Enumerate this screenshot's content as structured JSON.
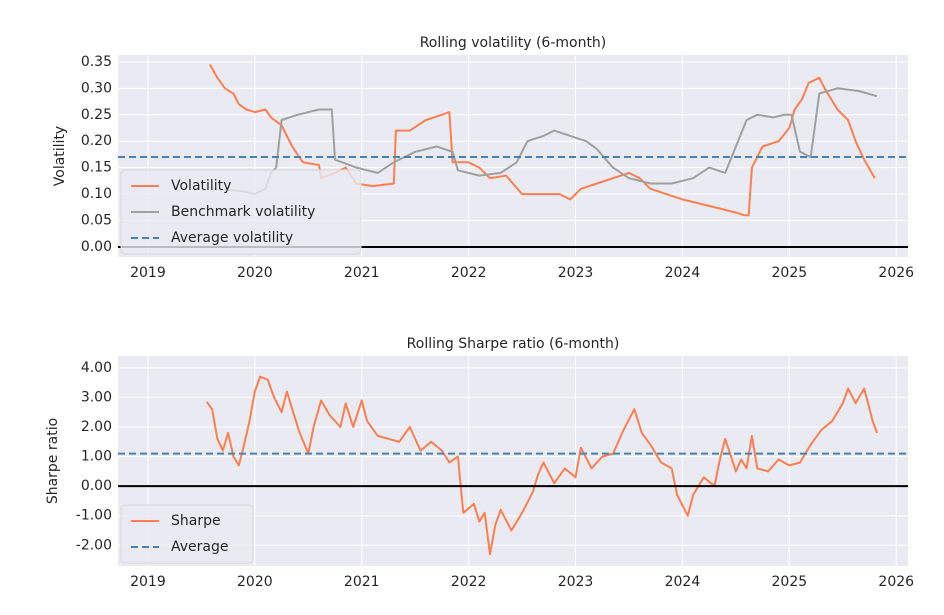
{
  "chart_data": [
    {
      "type": "line",
      "title": "Rolling volatility (6-month)",
      "ylabel": "Volatility",
      "xlim": [
        2018.72,
        2026.11
      ],
      "xticks": [
        2019,
        2020,
        2021,
        2022,
        2023,
        2024,
        2025,
        2026
      ],
      "ylim": [
        -0.019,
        0.363
      ],
      "yticks": [
        {
          "value": 0,
          "label": "0.00"
        },
        0.05,
        {
          "value": 0.1,
          "label": "0.10"
        },
        0.15,
        {
          "value": 0.2,
          "label": "0.20"
        },
        0.25,
        {
          "value": 0.3,
          "label": "0.30"
        },
        0.35
      ],
      "grid": true,
      "legend": "lower left",
      "axhline": 0,
      "series": [
        {
          "name": "Volatility",
          "color": "#ff7f50",
          "x": [
            2019.58,
            2019.65,
            2019.72,
            2019.8,
            2019.85,
            2019.92,
            2020.0,
            2020.1,
            2020.15,
            2020.25,
            2020.35,
            2020.45,
            2020.6,
            2020.62,
            2020.75,
            2020.85,
            2020.95,
            2021.1,
            2021.3,
            2021.32,
            2021.45,
            2021.6,
            2021.75,
            2021.82,
            2021.85,
            2022.0,
            2022.1,
            2022.2,
            2022.35,
            2022.5,
            2022.7,
            2022.85,
            2022.95,
            2023.05,
            2023.2,
            2023.35,
            2023.5,
            2023.6,
            2023.7,
            2023.85,
            2024.0,
            2024.2,
            2024.4,
            2024.5,
            2024.58,
            2024.62,
            2024.65,
            2024.75,
            2024.9,
            2025.0,
            2025.05,
            2025.12,
            2025.18,
            2025.28,
            2025.33,
            2025.45,
            2025.55,
            2025.62,
            2025.7,
            2025.8
          ],
          "values": [
            0.345,
            0.32,
            0.3,
            0.29,
            0.27,
            0.26,
            0.255,
            0.26,
            0.245,
            0.23,
            0.19,
            0.16,
            0.155,
            0.13,
            0.14,
            0.15,
            0.12,
            0.115,
            0.12,
            0.22,
            0.22,
            0.24,
            0.25,
            0.255,
            0.16,
            0.16,
            0.15,
            0.13,
            0.135,
            0.1,
            0.1,
            0.1,
            0.09,
            0.11,
            0.12,
            0.13,
            0.14,
            0.13,
            0.11,
            0.1,
            0.09,
            0.08,
            0.07,
            0.065,
            0.06,
            0.06,
            0.15,
            0.19,
            0.2,
            0.225,
            0.26,
            0.28,
            0.31,
            0.32,
            0.3,
            0.26,
            0.24,
            0.2,
            0.165,
            0.13
          ]
        },
        {
          "name": "Benchmark volatility",
          "color": "#a0a0a0",
          "x": [
            2019.6,
            2019.9,
            2020.0,
            2020.1,
            2020.15,
            2020.2,
            2020.25,
            2020.4,
            2020.6,
            2020.72,
            2020.75,
            2020.95,
            2021.15,
            2021.3,
            2021.5,
            2021.7,
            2021.85,
            2021.9,
            2022.1,
            2022.3,
            2022.45,
            2022.55,
            2022.7,
            2022.8,
            2022.95,
            2023.1,
            2023.2,
            2023.35,
            2023.5,
            2023.7,
            2023.9,
            2024.1,
            2024.25,
            2024.4,
            2024.5,
            2024.6,
            2024.7,
            2024.85,
            2024.95,
            2025.02,
            2025.1,
            2025.2,
            2025.28,
            2025.45,
            2025.65,
            2025.82
          ],
          "values": [
            0.11,
            0.105,
            0.1,
            0.11,
            0.14,
            0.15,
            0.24,
            0.25,
            0.26,
            0.26,
            0.165,
            0.15,
            0.14,
            0.16,
            0.18,
            0.19,
            0.18,
            0.145,
            0.135,
            0.14,
            0.16,
            0.2,
            0.21,
            0.22,
            0.21,
            0.2,
            0.185,
            0.15,
            0.13,
            0.12,
            0.12,
            0.13,
            0.15,
            0.14,
            0.19,
            0.24,
            0.25,
            0.245,
            0.25,
            0.25,
            0.18,
            0.17,
            0.29,
            0.3,
            0.295,
            0.285
          ]
        },
        {
          "name": "Average volatility",
          "color": "#4682b4",
          "linestyle": "dashed",
          "y": 0.17
        }
      ]
    },
    {
      "type": "line",
      "title": "Rolling Sharpe ratio (6-month)",
      "ylabel": "Sharpe ratio",
      "xlim": [
        2018.72,
        2026.11
      ],
      "xticks": [
        2019,
        2020,
        2021,
        2022,
        2023,
        2024,
        2025,
        2026
      ],
      "ylim": [
        -2.7,
        4.4
      ],
      "yticks": [
        {
          "value": -2,
          "label": "-2.00"
        },
        {
          "value": -1,
          "label": "-1.00"
        },
        {
          "value": 0,
          "label": "0.00"
        },
        {
          "value": 1,
          "label": "1.00"
        },
        {
          "value": 2,
          "label": "2.00"
        },
        {
          "value": 3,
          "label": "3.00"
        },
        {
          "value": 4,
          "label": "4.00"
        }
      ],
      "grid": true,
      "legend": "lower left",
      "axhline": 0,
      "series": [
        {
          "name": "Sharpe",
          "color": "#ff7f50",
          "x": [
            2019.55,
            2019.6,
            2019.65,
            2019.7,
            2019.75,
            2019.8,
            2019.85,
            2019.9,
            2019.95,
            2020.0,
            2020.05,
            2020.12,
            2020.18,
            2020.25,
            2020.3,
            2020.35,
            2020.42,
            2020.5,
            2020.55,
            2020.62,
            2020.7,
            2020.8,
            2020.85,
            2020.92,
            2021.0,
            2021.05,
            2021.15,
            2021.25,
            2021.35,
            2021.45,
            2021.55,
            2021.65,
            2021.75,
            2021.82,
            2021.9,
            2021.95,
            2022.05,
            2022.1,
            2022.15,
            2022.2,
            2022.25,
            2022.3,
            2022.4,
            2022.5,
            2022.6,
            2022.65,
            2022.7,
            2022.8,
            2022.9,
            2023.0,
            2023.05,
            2023.15,
            2023.25,
            2023.35,
            2023.45,
            2023.55,
            2023.62,
            2023.7,
            2023.8,
            2023.9,
            2023.95,
            2024.05,
            2024.1,
            2024.2,
            2024.3,
            2024.35,
            2024.4,
            2024.5,
            2024.55,
            2024.6,
            2024.65,
            2024.7,
            2024.8,
            2024.9,
            2025.0,
            2025.1,
            2025.2,
            2025.3,
            2025.4,
            2025.5,
            2025.55,
            2025.62,
            2025.7,
            2025.78,
            2025.82
          ],
          "values": [
            2.85,
            2.6,
            1.6,
            1.2,
            1.8,
            1.0,
            0.7,
            1.4,
            2.2,
            3.2,
            3.7,
            3.6,
            3.0,
            2.5,
            3.2,
            2.6,
            1.8,
            1.1,
            2.0,
            2.9,
            2.4,
            2.0,
            2.8,
            2.0,
            2.9,
            2.2,
            1.7,
            1.6,
            1.5,
            2.0,
            1.2,
            1.5,
            1.2,
            0.8,
            1.0,
            -0.9,
            -0.6,
            -1.2,
            -0.9,
            -2.3,
            -1.3,
            -0.8,
            -1.5,
            -0.9,
            -0.2,
            0.4,
            0.8,
            0.1,
            0.6,
            0.3,
            1.3,
            0.6,
            1.0,
            1.1,
            1.9,
            2.6,
            1.8,
            1.4,
            0.8,
            0.6,
            -0.3,
            -1.0,
            -0.3,
            0.3,
            0.0,
            0.9,
            1.6,
            0.5,
            0.9,
            0.6,
            1.7,
            0.6,
            0.5,
            0.9,
            0.7,
            0.8,
            1.4,
            1.9,
            2.2,
            2.8,
            3.3,
            2.8,
            3.3,
            2.2,
            1.8
          ]
        },
        {
          "name": "Average",
          "color": "#4682b4",
          "linestyle": "dashed",
          "y": 1.1
        }
      ]
    }
  ]
}
